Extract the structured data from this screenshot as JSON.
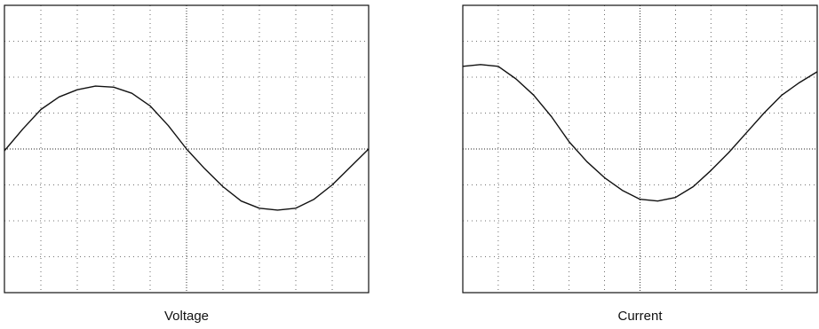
{
  "chart_data": [
    {
      "type": "line",
      "title": "Voltage",
      "x": [
        0,
        0.5,
        1,
        1.5,
        2,
        2.5,
        3,
        3.5,
        4,
        4.5,
        5,
        5.5,
        6,
        6.5,
        7,
        7.5,
        8,
        8.5,
        9,
        9.5,
        10
      ],
      "series": [
        {
          "color": "#111111",
          "values": [
            -0.05,
            0.55,
            1.1,
            1.45,
            1.65,
            1.75,
            1.72,
            1.55,
            1.2,
            0.65,
            0,
            -0.55,
            -1.05,
            -1.45,
            -1.65,
            -1.7,
            -1.65,
            -1.4,
            -1.0,
            -0.5,
            0
          ]
        }
      ],
      "xlim": [
        0,
        10
      ],
      "ylim": [
        -4,
        4
      ],
      "grid": true
    },
    {
      "type": "line",
      "title": "Current",
      "x": [
        0,
        0.5,
        1,
        1.5,
        2,
        2.5,
        3,
        3.5,
        4,
        4.5,
        5,
        5.5,
        6,
        6.5,
        7,
        7.5,
        8,
        8.5,
        9,
        9.5,
        10
      ],
      "series": [
        {
          "color": "#111111",
          "values": [
            2.3,
            2.35,
            2.3,
            1.95,
            1.5,
            0.9,
            0.2,
            -0.35,
            -0.8,
            -1.15,
            -1.4,
            -1.45,
            -1.35,
            -1.05,
            -0.6,
            -0.1,
            0.45,
            1.0,
            1.5,
            1.85,
            2.15
          ]
        }
      ],
      "xlim": [
        0,
        10
      ],
      "ylim": [
        -4,
        4
      ],
      "grid": true
    }
  ]
}
